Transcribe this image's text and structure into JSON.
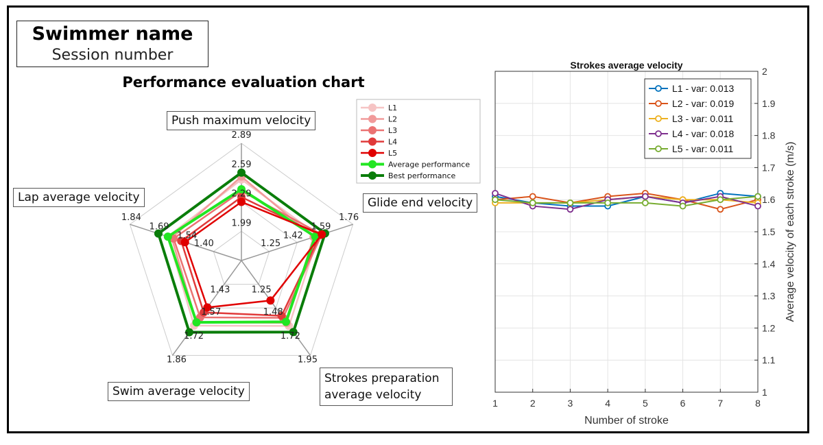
{
  "header": {
    "swimmer_name": "Swimmer name",
    "session_number": "Session number"
  },
  "radar": {
    "title": "Performance evaluation chart",
    "axes": [
      {
        "label": "Push maximum velocity",
        "ticks": [
          "2.89",
          "2.59",
          "2.29",
          "1.99"
        ]
      },
      {
        "label": "Glide end velocity",
        "ticks": [
          "1.76",
          "1.59",
          "1.42",
          "1.25"
        ]
      },
      {
        "label": "Strokes preparation average velocity",
        "ticks": [
          "1.95",
          "1.72",
          "1.48",
          "1.25"
        ]
      },
      {
        "label": "Swim average velocity",
        "ticks": [
          "1.86",
          "1.72",
          "1.57",
          "1.43"
        ]
      },
      {
        "label": "Lap average velocity",
        "ticks": [
          "1.84",
          "1.69",
          "1.54",
          "1.40"
        ]
      }
    ],
    "ranges": [
      [
        1.99,
        2.89
      ],
      [
        1.25,
        1.76
      ],
      [
        1.25,
        1.95
      ],
      [
        1.43,
        1.86
      ],
      [
        1.4,
        1.84
      ]
    ],
    "colors": {
      "L1": "#f6c4c4",
      "L2": "#f19a9a",
      "L3": "#eb7272",
      "L4": "#e03a3a",
      "L5": "#e00000",
      "avg": "#22e622",
      "best": "#0a7d0a",
      "grid": "#cccccc",
      "spoke": "#999999"
    },
    "legend": [
      "L1",
      "L2",
      "L3",
      "L4",
      "L5",
      "Average performance",
      "Best performance"
    ]
  },
  "chart_data": [
    {
      "type": "radar",
      "title": "Performance evaluation chart",
      "axes": [
        "Push maximum velocity",
        "Glide end velocity",
        "Strokes preparation average velocity",
        "Swim average velocity",
        "Lap average velocity"
      ],
      "series": [
        {
          "name": "L1",
          "values": [
            2.52,
            1.55,
            1.66,
            1.68,
            1.64
          ]
        },
        {
          "name": "L2",
          "values": [
            2.55,
            1.52,
            1.63,
            1.66,
            1.62
          ]
        },
        {
          "name": "L3",
          "values": [
            2.4,
            1.57,
            1.58,
            1.63,
            1.61
          ]
        },
        {
          "name": "L4",
          "values": [
            2.34,
            1.56,
            1.56,
            1.6,
            1.57
          ]
        },
        {
          "name": "L5",
          "values": [
            2.29,
            1.57,
            1.41,
            1.57,
            1.55
          ]
        },
        {
          "name": "Average performance",
          "values": [
            2.42,
            1.53,
            1.62,
            1.66,
            1.64
          ]
        },
        {
          "name": "Best performance",
          "values": [
            2.59,
            1.59,
            1.72,
            1.72,
            1.69
          ]
        }
      ]
    },
    {
      "type": "line",
      "title": "Strokes average velocity",
      "xlabel": "Number of stroke",
      "ylabel": "Average velocity of each stroke (m/s)",
      "x": [
        1,
        2,
        3,
        4,
        5,
        6,
        7,
        8
      ],
      "xlim": [
        1,
        8
      ],
      "ylim": [
        1,
        2
      ],
      "yticks": [
        "1",
        "1.1",
        "1.2",
        "1.3",
        "1.4",
        "1.5",
        "1.6",
        "1.7",
        "1.8",
        "1.9",
        "2"
      ],
      "xticks": [
        "1",
        "2",
        "3",
        "4",
        "5",
        "6",
        "7",
        "8"
      ],
      "grid": true,
      "legend_position": "top-right",
      "series": [
        {
          "name": "L1 - var: 0.013",
          "color": "#0072bd",
          "values": [
            1.61,
            1.59,
            1.58,
            1.58,
            1.61,
            1.59,
            1.62,
            1.61
          ]
        },
        {
          "name": "L2 - var: 0.019",
          "color": "#d95319",
          "values": [
            1.6,
            1.61,
            1.59,
            1.61,
            1.62,
            1.6,
            1.57,
            1.6
          ]
        },
        {
          "name": "L3 - var: 0.011",
          "color": "#edb120",
          "values": [
            1.59,
            1.59,
            1.59,
            1.6,
            1.61,
            1.6,
            1.6,
            1.59
          ]
        },
        {
          "name": "L4 - var: 0.018",
          "color": "#7e2f8e",
          "values": [
            1.62,
            1.58,
            1.57,
            1.6,
            1.61,
            1.59,
            1.61,
            1.58
          ]
        },
        {
          "name": "L5 - var: 0.011",
          "color": "#77ac30",
          "values": [
            1.6,
            1.59,
            1.59,
            1.59,
            1.59,
            1.58,
            1.6,
            1.61
          ]
        }
      ]
    }
  ]
}
